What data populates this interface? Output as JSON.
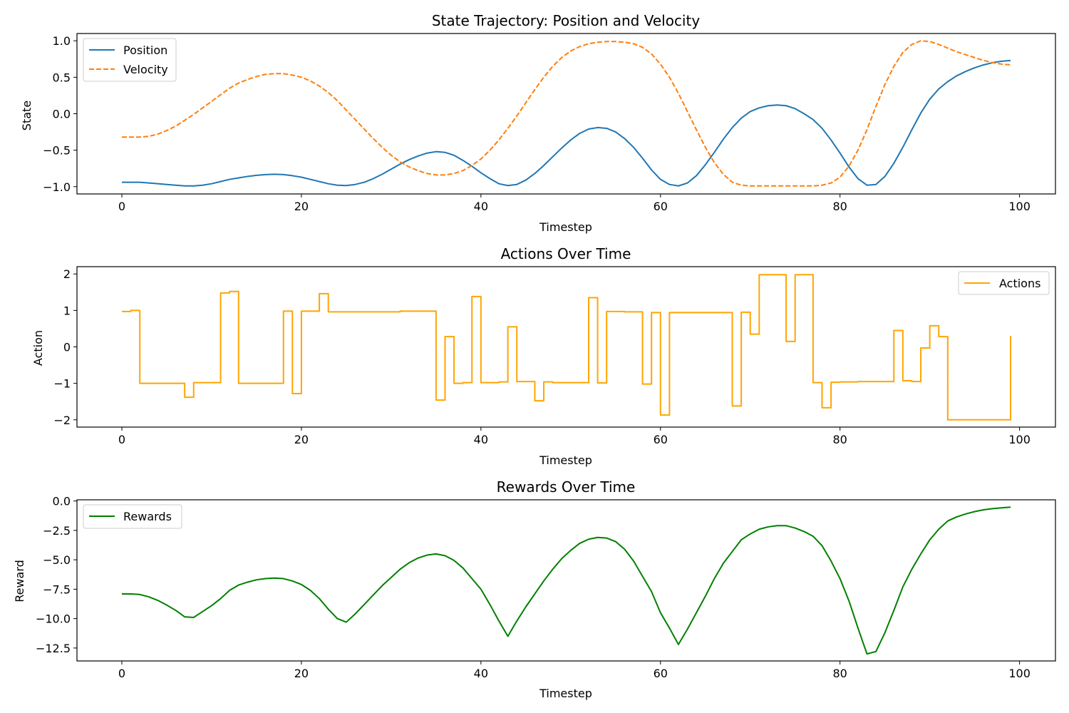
{
  "chart_data": [
    {
      "type": "line",
      "title": "State Trajectory: Position and Velocity",
      "xlabel": "Timestep",
      "ylabel": "State",
      "xlim": [
        -5,
        104
      ],
      "ylim": [
        -1.1,
        1.1
      ],
      "xticks": [
        0,
        20,
        40,
        60,
        80,
        100
      ],
      "yticks": [
        -1.0,
        -0.5,
        0.0,
        0.5,
        1.0
      ],
      "ytick_labels": [
        "−1.0",
        "−0.5",
        "0.0",
        "0.5",
        "1.0"
      ],
      "legend": "top-left",
      "x": [
        0,
        1,
        2,
        3,
        4,
        5,
        6,
        7,
        8,
        9,
        10,
        11,
        12,
        13,
        14,
        15,
        16,
        17,
        18,
        19,
        20,
        21,
        22,
        23,
        24,
        25,
        26,
        27,
        28,
        29,
        30,
        31,
        32,
        33,
        34,
        35,
        36,
        37,
        38,
        39,
        40,
        41,
        42,
        43,
        44,
        45,
        46,
        47,
        48,
        49,
        50,
        51,
        52,
        53,
        54,
        55,
        56,
        57,
        58,
        59,
        60,
        61,
        62,
        63,
        64,
        65,
        66,
        67,
        68,
        69,
        70,
        71,
        72,
        73,
        74,
        75,
        76,
        77,
        78,
        79,
        80,
        81,
        82,
        83,
        84,
        85,
        86,
        87,
        88,
        89,
        90,
        91,
        92,
        93,
        94,
        95,
        96,
        97,
        98,
        99
      ],
      "series": [
        {
          "name": "Position",
          "color": "#1f77b4",
          "style": "solid",
          "values": [
            -0.94,
            -0.94,
            -0.94,
            -0.95,
            -0.96,
            -0.97,
            -0.98,
            -0.99,
            -0.99,
            -0.98,
            -0.96,
            -0.93,
            -0.9,
            -0.88,
            -0.86,
            -0.845,
            -0.835,
            -0.83,
            -0.835,
            -0.85,
            -0.87,
            -0.9,
            -0.93,
            -0.96,
            -0.98,
            -0.985,
            -0.97,
            -0.94,
            -0.89,
            -0.83,
            -0.76,
            -0.69,
            -0.63,
            -0.58,
            -0.54,
            -0.52,
            -0.53,
            -0.57,
            -0.64,
            -0.72,
            -0.81,
            -0.89,
            -0.96,
            -0.985,
            -0.97,
            -0.91,
            -0.82,
            -0.71,
            -0.59,
            -0.47,
            -0.36,
            -0.27,
            -0.21,
            -0.19,
            -0.2,
            -0.25,
            -0.34,
            -0.46,
            -0.61,
            -0.77,
            -0.9,
            -0.97,
            -0.99,
            -0.95,
            -0.85,
            -0.7,
            -0.53,
            -0.35,
            -0.19,
            -0.06,
            0.03,
            0.08,
            0.11,
            0.12,
            0.11,
            0.07,
            0.0,
            -0.08,
            -0.2,
            -0.36,
            -0.54,
            -0.73,
            -0.89,
            -0.98,
            -0.97,
            -0.86,
            -0.68,
            -0.46,
            -0.22,
            0.01,
            0.2,
            0.34,
            0.44,
            0.52,
            0.58,
            0.63,
            0.67,
            0.7,
            0.72,
            0.73
          ]
        },
        {
          "name": "Velocity",
          "color": "#ff7f0e",
          "style": "dashed",
          "values": [
            -0.32,
            -0.32,
            -0.32,
            -0.31,
            -0.28,
            -0.23,
            -0.17,
            -0.09,
            -0.01,
            0.08,
            0.17,
            0.26,
            0.35,
            0.42,
            0.47,
            0.51,
            0.54,
            0.55,
            0.55,
            0.53,
            0.5,
            0.45,
            0.38,
            0.29,
            0.18,
            0.05,
            -0.08,
            -0.21,
            -0.34,
            -0.46,
            -0.57,
            -0.66,
            -0.73,
            -0.78,
            -0.82,
            -0.84,
            -0.84,
            -0.82,
            -0.78,
            -0.71,
            -0.62,
            -0.5,
            -0.36,
            -0.2,
            -0.03,
            0.15,
            0.33,
            0.5,
            0.65,
            0.77,
            0.86,
            0.92,
            0.96,
            0.98,
            0.99,
            0.99,
            0.98,
            0.96,
            0.91,
            0.82,
            0.68,
            0.5,
            0.28,
            0.03,
            -0.22,
            -0.46,
            -0.67,
            -0.83,
            -0.94,
            -0.98,
            -0.99,
            -0.99,
            -0.99,
            -0.99,
            -0.99,
            -0.99,
            -0.99,
            -0.99,
            -0.98,
            -0.95,
            -0.87,
            -0.72,
            -0.5,
            -0.22,
            0.1,
            0.4,
            0.65,
            0.84,
            0.95,
            1.0,
            0.99,
            0.95,
            0.9,
            0.85,
            0.81,
            0.77,
            0.73,
            0.7,
            0.68,
            0.67
          ]
        }
      ]
    },
    {
      "type": "line",
      "title": "Actions Over Time",
      "xlabel": "Timestep",
      "ylabel": "Action",
      "xlim": [
        -5,
        104
      ],
      "ylim": [
        -2.2,
        2.2
      ],
      "xticks": [
        0,
        20,
        40,
        60,
        80,
        100
      ],
      "yticks": [
        -2,
        -1,
        0,
        1,
        2
      ],
      "ytick_labels": [
        "−2",
        "−1",
        "0",
        "1",
        "2"
      ],
      "legend": "top-right",
      "step": "post",
      "x": [
        0,
        1,
        2,
        3,
        4,
        5,
        6,
        7,
        8,
        9,
        10,
        11,
        12,
        13,
        14,
        15,
        16,
        17,
        18,
        19,
        20,
        21,
        22,
        23,
        24,
        25,
        26,
        27,
        28,
        29,
        30,
        31,
        32,
        33,
        34,
        35,
        36,
        37,
        38,
        39,
        40,
        41,
        42,
        43,
        44,
        45,
        46,
        47,
        48,
        49,
        50,
        51,
        52,
        53,
        54,
        55,
        56,
        57,
        58,
        59,
        60,
        61,
        62,
        63,
        64,
        65,
        66,
        67,
        68,
        69,
        70,
        71,
        72,
        73,
        74,
        75,
        76,
        77,
        78,
        79,
        80,
        81,
        82,
        83,
        84,
        85,
        86,
        87,
        88,
        89,
        90,
        91,
        92,
        93,
        94,
        95,
        96,
        97,
        98,
        99
      ],
      "series": [
        {
          "name": "Actions",
          "color": "#ffa500",
          "style": "solid",
          "values": [
            0.97,
            1.0,
            -1.0,
            -1.0,
            -1.0,
            -1.0,
            -1.0,
            -1.38,
            -0.98,
            -0.98,
            -0.98,
            1.48,
            1.52,
            -1.0,
            -1.0,
            -1.0,
            -1.0,
            -1.0,
            0.98,
            -1.28,
            0.98,
            0.98,
            1.46,
            0.96,
            0.96,
            0.96,
            0.96,
            0.96,
            0.96,
            0.96,
            0.96,
            0.98,
            0.98,
            0.98,
            0.98,
            -1.46,
            0.28,
            -1.0,
            -0.98,
            1.38,
            -0.98,
            -0.98,
            -0.96,
            0.55,
            -0.95,
            -0.95,
            -1.48,
            -0.96,
            -0.98,
            -0.98,
            -0.98,
            -0.98,
            1.35,
            -0.99,
            0.97,
            0.97,
            0.96,
            0.96,
            -1.02,
            0.94,
            -1.87,
            0.94,
            0.94,
            0.94,
            0.94,
            0.94,
            0.94,
            0.94,
            -1.62,
            0.95,
            0.35,
            1.98,
            1.98,
            1.98,
            0.15,
            1.98,
            1.98,
            -0.98,
            -1.67,
            -0.97,
            -0.96,
            -0.96,
            -0.95,
            -0.95,
            -0.95,
            -0.95,
            0.45,
            -0.93,
            -0.95,
            -0.03,
            0.58,
            0.28,
            -2.0,
            -2.0,
            -2.0,
            -2.0,
            -2.0,
            -2.0,
            -2.0,
            0.3
          ]
        }
      ]
    },
    {
      "type": "line",
      "title": "Rewards Over Time",
      "xlabel": "Timestep",
      "ylabel": "Reward",
      "xlim": [
        -5,
        104
      ],
      "ylim": [
        -13.6,
        0.1
      ],
      "xticks": [
        0,
        20,
        40,
        60,
        80,
        100
      ],
      "yticks": [
        -12.5,
        -10.0,
        -7.5,
        -5.0,
        -2.5,
        0.0
      ],
      "ytick_labels": [
        "−12.5",
        "−10.0",
        "−7.5",
        "−5.0",
        "−2.5",
        "0.0"
      ],
      "legend": "top-left",
      "x": [
        0,
        1,
        2,
        3,
        4,
        5,
        6,
        7,
        8,
        9,
        10,
        11,
        12,
        13,
        14,
        15,
        16,
        17,
        18,
        19,
        20,
        21,
        22,
        23,
        24,
        25,
        26,
        27,
        28,
        29,
        30,
        31,
        32,
        33,
        34,
        35,
        36,
        37,
        38,
        39,
        40,
        41,
        42,
        43,
        44,
        45,
        46,
        47,
        48,
        49,
        50,
        51,
        52,
        53,
        54,
        55,
        56,
        57,
        58,
        59,
        60,
        61,
        62,
        63,
        64,
        65,
        66,
        67,
        68,
        69,
        70,
        71,
        72,
        73,
        74,
        75,
        76,
        77,
        78,
        79,
        80,
        81,
        82,
        83,
        84,
        85,
        86,
        87,
        88,
        89,
        90,
        91,
        92,
        93,
        94,
        95,
        96,
        97,
        98,
        99
      ],
      "series": [
        {
          "name": "Rewards",
          "color": "#008000",
          "style": "solid",
          "values": [
            -7.9,
            -7.9,
            -7.95,
            -8.15,
            -8.45,
            -8.85,
            -9.3,
            -9.85,
            -9.9,
            -9.4,
            -8.9,
            -8.3,
            -7.6,
            -7.15,
            -6.9,
            -6.7,
            -6.6,
            -6.55,
            -6.6,
            -6.8,
            -7.1,
            -7.6,
            -8.3,
            -9.2,
            -10.0,
            -10.3,
            -9.6,
            -8.8,
            -8.0,
            -7.2,
            -6.5,
            -5.8,
            -5.25,
            -4.85,
            -4.6,
            -4.5,
            -4.65,
            -5.05,
            -5.7,
            -6.6,
            -7.5,
            -8.8,
            -10.2,
            -11.5,
            -10.2,
            -9.0,
            -7.9,
            -6.8,
            -5.8,
            -4.9,
            -4.2,
            -3.6,
            -3.25,
            -3.1,
            -3.15,
            -3.45,
            -4.1,
            -5.1,
            -6.4,
            -7.7,
            -9.5,
            -10.8,
            -12.2,
            -10.9,
            -9.5,
            -8.1,
            -6.6,
            -5.3,
            -4.3,
            -3.3,
            -2.8,
            -2.4,
            -2.2,
            -2.1,
            -2.1,
            -2.3,
            -2.6,
            -3.0,
            -3.8,
            -5.1,
            -6.6,
            -8.5,
            -10.8,
            -13.0,
            -12.8,
            -11.2,
            -9.3,
            -7.3,
            -5.8,
            -4.5,
            -3.3,
            -2.4,
            -1.7,
            -1.35,
            -1.1,
            -0.9,
            -0.75,
            -0.65,
            -0.58,
            -0.52
          ]
        }
      ]
    }
  ]
}
